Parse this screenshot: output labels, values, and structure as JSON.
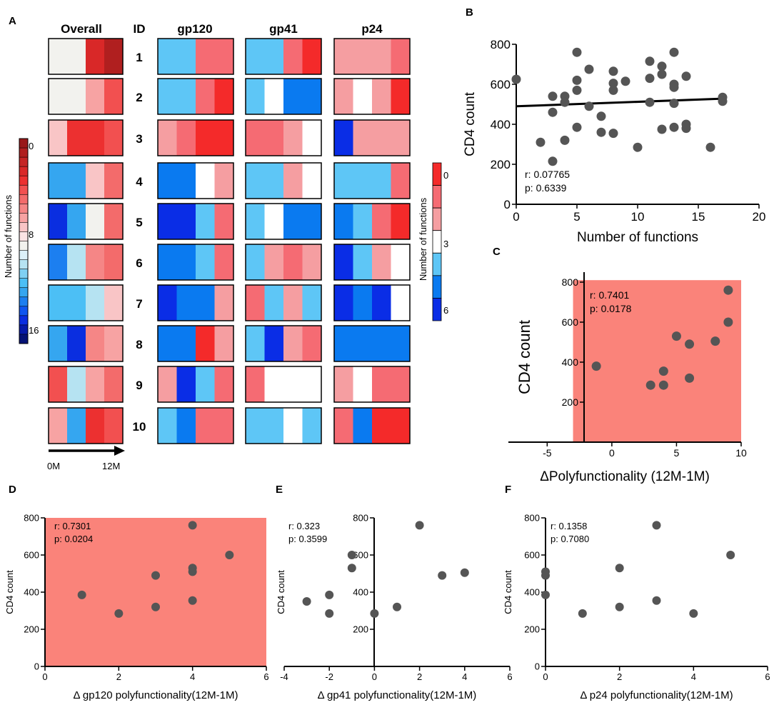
{
  "panel_labels": {
    "A": "A",
    "B": "B",
    "C": "C",
    "D": "D",
    "E": "E",
    "F": "F"
  },
  "colors": {
    "overall": [
      "#99191a",
      "#b01f1f",
      "#c52525",
      "#d92828",
      "#ec3030",
      "#f25050",
      "#f36b6b",
      "#f58686",
      "#f7a3a3",
      "#f9c5c6",
      "#fbe3e4",
      "#f2f2ee",
      "#dcf0f8",
      "#b6e3f2",
      "#7fd0f3",
      "#4cbff5",
      "#35a6f0",
      "#1c7ff0",
      "#0f56f0",
      "#0a2ee0",
      "#061aa8",
      "#051275"
    ],
    "per_protein": {
      "0": "#f42a2a",
      "1": "#f56b73",
      "2": "#f59ea1",
      "3": "#ffffff",
      "4": "#5ec6f6",
      "5": "#0a7af0",
      "6": "#0a2de6"
    }
  },
  "chart_data": [
    {
      "id": "A",
      "type": "heatmap",
      "titles": {
        "overall": "Overall",
        "id": "ID",
        "gp120": "gp120",
        "gp41": "gp41",
        "p24": "p24"
      },
      "row_ids": [
        "1",
        "2",
        "3",
        "4",
        "5",
        "6",
        "7",
        "8",
        "9",
        "10"
      ],
      "overall_scale": "0-16 (red = 0, blue = 16)",
      "overall": [
        [
          11,
          11,
          3,
          1
        ],
        [
          11,
          11,
          8,
          5
        ],
        [
          9,
          4,
          4,
          5
        ],
        [
          16,
          16,
          9,
          6
        ],
        [
          19,
          16,
          11,
          6
        ],
        [
          17,
          13,
          7,
          6
        ],
        [
          15,
          15,
          13,
          9
        ],
        [
          16,
          19,
          7,
          8
        ],
        [
          5,
          13,
          8,
          6
        ],
        [
          8,
          16,
          4,
          5
        ]
      ],
      "gp120": [
        [
          4,
          4,
          1,
          1
        ],
        [
          4,
          4,
          1,
          0
        ],
        [
          2,
          1,
          0,
          0
        ],
        [
          5,
          5,
          3,
          2
        ],
        [
          6,
          6,
          4,
          1
        ],
        [
          5,
          5,
          4,
          1
        ],
        [
          6,
          5,
          5,
          2
        ],
        [
          5,
          5,
          0,
          2
        ],
        [
          2,
          6,
          4,
          1
        ],
        [
          4,
          5,
          1,
          1
        ]
      ],
      "gp41": [
        [
          4,
          4,
          1,
          0
        ],
        [
          4,
          3,
          5,
          5
        ],
        [
          1,
          1,
          2,
          3
        ],
        [
          4,
          4,
          2,
          3
        ],
        [
          4,
          3,
          5,
          5
        ],
        [
          4,
          2,
          1,
          2
        ],
        [
          1,
          4,
          2,
          4
        ],
        [
          4,
          6,
          2,
          1
        ],
        [
          1,
          3,
          3,
          3
        ],
        [
          4,
          4,
          3,
          4
        ]
      ],
      "p24": [
        [
          2,
          2,
          2,
          1
        ],
        [
          2,
          3,
          2,
          0
        ],
        [
          6,
          2,
          2,
          2
        ],
        [
          4,
          4,
          4,
          1
        ],
        [
          5,
          4,
          1,
          0
        ],
        [
          6,
          4,
          2,
          3
        ],
        [
          6,
          5,
          6,
          3
        ],
        [
          5,
          5,
          5,
          5
        ],
        [
          2,
          3,
          1,
          1
        ],
        [
          1,
          5,
          0,
          0
        ]
      ],
      "overall_legend": {
        "title": "Number of functions",
        "ticks": [
          "0",
          "8",
          "16"
        ]
      },
      "protein_legend": {
        "title": "Number of functions",
        "ticks": [
          "0",
          "3",
          "6"
        ]
      },
      "time_axis": {
        "start": "0M",
        "end": "12M"
      }
    },
    {
      "id": "B",
      "type": "scatter",
      "xlabel": "Number of functions",
      "ylabel": "CD4 count",
      "xlim": [
        0,
        20
      ],
      "ylim": [
        0,
        800
      ],
      "xticks": [
        "0",
        "5",
        "10",
        "15",
        "20"
      ],
      "yticks": [
        "0",
        "200",
        "400",
        "600",
        "800"
      ],
      "stats": {
        "r_label": "r:",
        "r": "0.07765",
        "p_label": "p:",
        "p": "0.6339"
      },
      "regression": {
        "x": [
          0,
          17
        ],
        "y": [
          490,
          528
        ]
      },
      "points": [
        [
          0,
          625
        ],
        [
          2,
          310
        ],
        [
          3,
          540
        ],
        [
          3,
          460
        ],
        [
          3,
          215
        ],
        [
          4,
          540
        ],
        [
          4,
          510
        ],
        [
          4,
          320
        ],
        [
          5,
          760
        ],
        [
          5,
          620
        ],
        [
          5,
          570
        ],
        [
          5,
          385
        ],
        [
          6,
          675
        ],
        [
          6,
          490
        ],
        [
          7,
          440
        ],
        [
          7,
          360
        ],
        [
          8,
          665
        ],
        [
          8,
          605
        ],
        [
          8,
          570
        ],
        [
          8,
          355
        ],
        [
          9,
          615
        ],
        [
          10,
          285
        ],
        [
          11,
          715
        ],
        [
          11,
          630
        ],
        [
          11,
          510
        ],
        [
          12,
          690
        ],
        [
          12,
          650
        ],
        [
          12,
          375
        ],
        [
          13,
          760
        ],
        [
          13,
          600
        ],
        [
          13,
          585
        ],
        [
          13,
          505
        ],
        [
          13,
          385
        ],
        [
          14,
          640
        ],
        [
          14,
          400
        ],
        [
          14,
          380
        ],
        [
          16,
          285
        ],
        [
          17,
          535
        ],
        [
          17,
          515
        ]
      ]
    },
    {
      "id": "C",
      "type": "scatter",
      "xlabel": "ΔPolyfunctionality (12M-1M)",
      "ylabel": "CD4 count",
      "xlim": [
        -8,
        10
      ],
      "ylim": [
        0,
        850
      ],
      "xticks": [
        "-5",
        "0",
        "5",
        "10"
      ],
      "yticks": [
        "200",
        "400",
        "600",
        "800"
      ],
      "shade": {
        "x": [
          -3,
          10
        ],
        "y": [
          0,
          810
        ],
        "color": "#fa837a"
      },
      "stats": {
        "r_label": "r:",
        "r": "0.7401",
        "p_label": "p:",
        "p": "0.0178"
      },
      "points": [
        [
          -1.2,
          380
        ],
        [
          3,
          285
        ],
        [
          4,
          355
        ],
        [
          4,
          285
        ],
        [
          5,
          530
        ],
        [
          6,
          490
        ],
        [
          6,
          320
        ],
        [
          8,
          505
        ],
        [
          9,
          760
        ],
        [
          9,
          600
        ]
      ]
    },
    {
      "id": "D",
      "type": "scatter",
      "xlabel": "Δ gp120 polyfunctionality(12M-1M)",
      "ylabel": "CD4 count",
      "xlim": [
        0,
        6
      ],
      "ylim": [
        0,
        800
      ],
      "xticks": [
        "0",
        "2",
        "4",
        "6"
      ],
      "yticks": [
        "0",
        "200",
        "400",
        "600",
        "800"
      ],
      "shade": {
        "x": [
          0,
          6
        ],
        "y": [
          0,
          800
        ],
        "color": "#fa837a"
      },
      "stats": {
        "r_label": "r:",
        "r": "0.7301",
        "p_label": "p:",
        "p": "0.0204"
      },
      "points": [
        [
          1,
          385
        ],
        [
          2,
          285
        ],
        [
          3,
          490
        ],
        [
          3,
          320
        ],
        [
          4,
          760
        ],
        [
          4,
          530
        ],
        [
          4,
          510
        ],
        [
          4,
          355
        ],
        [
          5,
          600
        ]
      ]
    },
    {
      "id": "E",
      "type": "scatter",
      "xlabel": "Δ gp41 polyfunctionality(12M-1M)",
      "ylabel": "CD4 count",
      "xlim": [
        -4,
        6
      ],
      "ylim": [
        0,
        800
      ],
      "xticks": [
        "-4",
        "-2",
        "0",
        "2",
        "4",
        "6"
      ],
      "yticks": [
        "200",
        "400",
        "600",
        "800"
      ],
      "stats": {
        "r_label": "r:",
        "r": "0.323",
        "p_label": "p:",
        "p": "0.3599"
      },
      "points": [
        [
          -3,
          350
        ],
        [
          -2,
          385
        ],
        [
          -2,
          285
        ],
        [
          -1,
          600
        ],
        [
          -1,
          530
        ],
        [
          0,
          285
        ],
        [
          1,
          320
        ],
        [
          2,
          760
        ],
        [
          3,
          490
        ],
        [
          4,
          505
        ]
      ]
    },
    {
      "id": "F",
      "type": "scatter",
      "xlabel": "Δ p24 polyfunctionality(12M-1M)",
      "ylabel": "CD4 count",
      "xlim": [
        0,
        6
      ],
      "ylim": [
        0,
        800
      ],
      "xticks": [
        "0",
        "2",
        "4",
        "6"
      ],
      "yticks": [
        "0",
        "200",
        "400",
        "600",
        "800"
      ],
      "stats": {
        "r_label": "r:",
        "r": "0.1358",
        "p_label": "p:",
        "p": "0.7080"
      },
      "points": [
        [
          0,
          510
        ],
        [
          0,
          490
        ],
        [
          0,
          385
        ],
        [
          1,
          285
        ],
        [
          2,
          530
        ],
        [
          2,
          320
        ],
        [
          3,
          760
        ],
        [
          3,
          355
        ],
        [
          4,
          285
        ],
        [
          5,
          600
        ]
      ]
    }
  ]
}
